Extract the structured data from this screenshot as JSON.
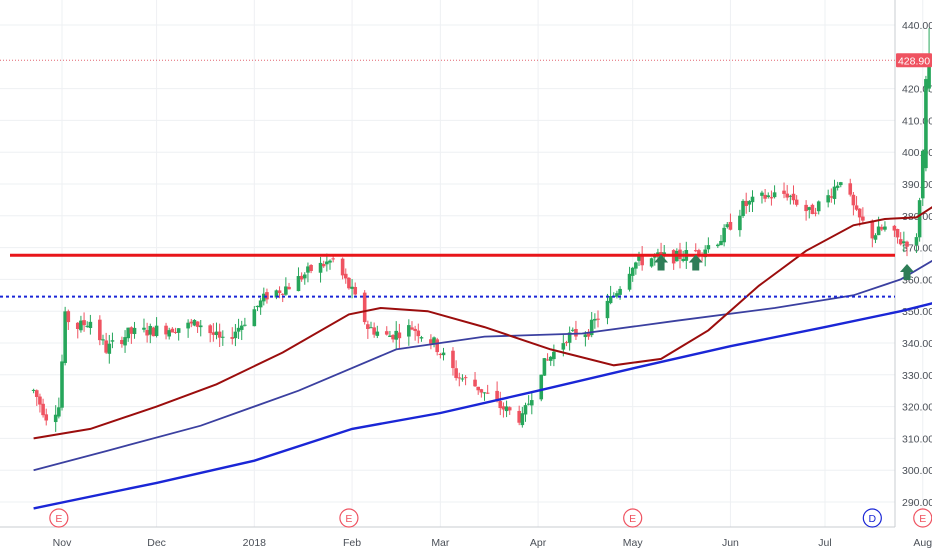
{
  "chart_data": {
    "type": "candlestick",
    "y_ticks": [
      290,
      300,
      310,
      320,
      330,
      340,
      350,
      360,
      370,
      380,
      390,
      400,
      410,
      420,
      440
    ],
    "ylim": [
      285,
      444
    ],
    "x_tick_labels": [
      "Nov",
      "Dec",
      "2018",
      "Feb",
      "Mar",
      "Apr",
      "May",
      "Jun",
      "Jul",
      "Aug"
    ],
    "last_price_label": "428.90",
    "last_price": 428.9,
    "grid": true,
    "colors": {
      "up": "#26a65b",
      "down": "#ef5361",
      "ma_short": "#9b0d0d",
      "ma_mid": "#3b40a0",
      "ma_long": "#1a26d6",
      "resistance": "#e8161a",
      "support_dotted": "#1a26d6",
      "arrow": "#2e7d57"
    },
    "resistance_level": 367.6,
    "support_level": 354.6,
    "anchors": [
      [
        "2017-10-23",
        325
      ],
      [
        "2017-10-27",
        317
      ],
      [
        "2017-10-31",
        320
      ],
      [
        "2017-11-02",
        348
      ],
      [
        "2017-11-06",
        345
      ],
      [
        "2017-11-10",
        347
      ],
      [
        "2017-11-15",
        338
      ],
      [
        "2017-11-22",
        343
      ],
      [
        "2017-11-30",
        344
      ],
      [
        "2017-12-08",
        345
      ],
      [
        "2017-12-15",
        346
      ],
      [
        "2017-12-22",
        340
      ],
      [
        "2017-12-28",
        346
      ],
      [
        "2018-01-05",
        355
      ],
      [
        "2018-01-12",
        358
      ],
      [
        "2018-01-19",
        363
      ],
      [
        "2018-01-26",
        366
      ],
      [
        "2018-02-01",
        356
      ],
      [
        "2018-02-06",
        345
      ],
      [
        "2018-02-12",
        342
      ],
      [
        "2018-02-20",
        345
      ],
      [
        "2018-02-27",
        340
      ],
      [
        "2018-03-06",
        330
      ],
      [
        "2018-03-13",
        326
      ],
      [
        "2018-03-20",
        320
      ],
      [
        "2018-03-27",
        316
      ],
      [
        "2018-04-02",
        332
      ],
      [
        "2018-04-10",
        342
      ],
      [
        "2018-04-17",
        344
      ],
      [
        "2018-04-25",
        355
      ],
      [
        "2018-05-01",
        365
      ],
      [
        "2018-05-08",
        367
      ],
      [
        "2018-05-15",
        367
      ],
      [
        "2018-05-22",
        369
      ],
      [
        "2018-05-29",
        373
      ],
      [
        "2018-06-05",
        383
      ],
      [
        "2018-06-12",
        386
      ],
      [
        "2018-06-19",
        387
      ],
      [
        "2018-06-26",
        381
      ],
      [
        "2018-07-02",
        386
      ],
      [
        "2018-07-06",
        392
      ],
      [
        "2018-07-11",
        380
      ],
      [
        "2018-07-16",
        374
      ],
      [
        "2018-07-20",
        376
      ],
      [
        "2018-07-25",
        372
      ],
      [
        "2018-07-30",
        372
      ],
      [
        "2018-08-01",
        400
      ],
      [
        "2018-08-03",
        428
      ],
      [
        "2018-08-06",
        428.9
      ]
    ],
    "start_date": "2017-10-23",
    "end_date": "2018-08-06",
    "moving_averages": {
      "ma_short": [
        [
          "2017-10-23",
          310
        ],
        [
          "2017-11-10",
          313
        ],
        [
          "2017-12-01",
          320
        ],
        [
          "2017-12-20",
          327
        ],
        [
          "2018-01-10",
          337
        ],
        [
          "2018-01-31",
          349
        ],
        [
          "2018-02-10",
          351
        ],
        [
          "2018-02-25",
          350
        ],
        [
          "2018-03-15",
          345
        ],
        [
          "2018-04-05",
          338
        ],
        [
          "2018-04-25",
          333
        ],
        [
          "2018-05-10",
          335
        ],
        [
          "2018-05-25",
          344
        ],
        [
          "2018-06-10",
          358
        ],
        [
          "2018-06-25",
          369
        ],
        [
          "2018-07-10",
          377
        ],
        [
          "2018-07-20",
          379
        ],
        [
          "2018-07-30",
          379.5
        ],
        [
          "2018-08-06",
          384
        ]
      ],
      "ma_mid": [
        [
          "2017-10-23",
          300
        ],
        [
          "2017-11-15",
          306
        ],
        [
          "2017-12-15",
          314
        ],
        [
          "2018-01-15",
          325
        ],
        [
          "2018-02-15",
          338
        ],
        [
          "2018-03-15",
          342
        ],
        [
          "2018-04-15",
          343
        ],
        [
          "2018-05-15",
          347
        ],
        [
          "2018-06-15",
          351
        ],
        [
          "2018-07-10",
          355
        ],
        [
          "2018-07-25",
          360
        ],
        [
          "2018-08-06",
          367
        ]
      ],
      "ma_long": [
        [
          "2017-10-23",
          288
        ],
        [
          "2017-12-01",
          296
        ],
        [
          "2018-01-01",
          303
        ],
        [
          "2018-02-01",
          313
        ],
        [
          "2018-03-01",
          318
        ],
        [
          "2018-04-01",
          325
        ],
        [
          "2018-05-01",
          332
        ],
        [
          "2018-06-01",
          339
        ],
        [
          "2018-07-01",
          345
        ],
        [
          "2018-07-25",
          350
        ],
        [
          "2018-08-06",
          353
        ]
      ]
    },
    "event_markers": [
      {
        "date": "2017-10-31",
        "label": "E",
        "color": "#ef5361"
      },
      {
        "date": "2018-01-31",
        "label": "E",
        "color": "#ef5361"
      },
      {
        "date": "2018-05-01",
        "label": "E",
        "color": "#ef5361"
      },
      {
        "date": "2018-07-16",
        "label": "D",
        "color": "#1a26d6"
      },
      {
        "date": "2018-08-01",
        "label": "E",
        "color": "#ef5361"
      }
    ],
    "arrows": [
      {
        "date": "2018-05-10",
        "value": 365
      },
      {
        "date": "2018-05-21",
        "value": 365
      },
      {
        "date": "2018-07-27",
        "value": 362
      }
    ]
  }
}
